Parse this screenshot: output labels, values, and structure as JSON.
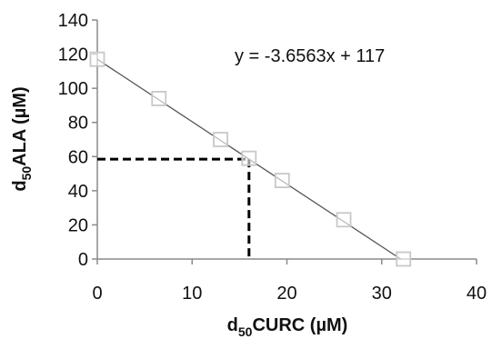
{
  "chart_data": {
    "type": "scatter",
    "title": "",
    "xlabel": {
      "prefix": "d",
      "subscript": "50",
      "main": "CURC (µM)"
    },
    "ylabel": {
      "prefix": "d",
      "subscript": "50",
      "main": "ALA (µM)"
    },
    "xlim": [
      0,
      40
    ],
    "ylim": [
      0,
      140
    ],
    "xticks": [
      0,
      10,
      20,
      30,
      40
    ],
    "yticks": [
      0,
      20,
      40,
      60,
      80,
      100,
      120,
      140
    ],
    "xtick_labels": [
      "0",
      "10",
      "20",
      "30",
      "40"
    ],
    "ytick_labels": [
      "0",
      "20",
      "40",
      "60",
      "80",
      "100",
      "120",
      "140"
    ],
    "grid": false,
    "legend": "none",
    "series": [
      {
        "marker": "open-square",
        "color": "#c8c8c8",
        "x": [
          0,
          6.5,
          13,
          16,
          19.5,
          26,
          32.3
        ],
        "y": [
          117,
          94,
          70,
          59,
          46,
          23,
          0
        ]
      }
    ],
    "trendline": {
      "slope": -3.6563,
      "intercept": 117,
      "x_range": [
        0,
        32
      ],
      "color": "#555555",
      "label": "y = -3.6563x + 117"
    },
    "reference_point": {
      "x": 16,
      "y": 58.5,
      "line_style": "dashed",
      "color": "#000000"
    }
  }
}
